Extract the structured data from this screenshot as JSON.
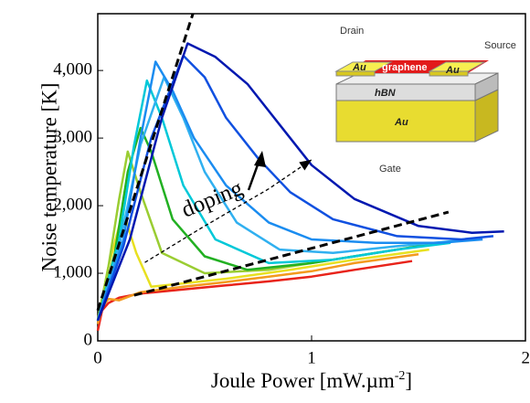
{
  "chart_data": {
    "type": "line",
    "xlabel": {
      "text": "Joule Power [mW.µm",
      "superscript": "-2",
      "close": "]"
    },
    "ylabel": "Noise temperature [K]",
    "annotation": "doping",
    "xlim": [
      0,
      2
    ],
    "xticks": [
      0,
      1,
      2
    ],
    "ylim": [
      0,
      4840
    ],
    "yticks": [
      0,
      {
        "value": 1000,
        "label": "1,000"
      },
      {
        "value": 2000,
        "label": "2,000"
      },
      {
        "value": 3000,
        "label": "3,000"
      },
      {
        "value": 4000,
        "label": "4,000"
      }
    ],
    "series": [
      {
        "color": "#e8231a",
        "x": [
          0,
          0.02,
          0.05,
          0.1,
          0.2,
          0.4,
          0.6,
          0.8,
          1.0,
          1.2,
          1.47
        ],
        "values": [
          150,
          450,
          560,
          640,
          700,
          760,
          820,
          880,
          950,
          1050,
          1180
        ]
      },
      {
        "color": "#f39a1e",
        "x": [
          0,
          0.02,
          0.05,
          0.1,
          0.2,
          0.4,
          0.6,
          0.8,
          1.0,
          1.2,
          1.5
        ],
        "values": [
          250,
          500,
          620,
          600,
          720,
          800,
          870,
          950,
          1030,
          1150,
          1280
        ]
      },
      {
        "color": "#e8e020",
        "x": [
          0,
          0.05,
          0.1,
          0.13,
          0.18,
          0.25,
          0.4,
          0.6,
          0.9,
          1.2,
          1.55
        ],
        "values": [
          300,
          1100,
          1700,
          1800,
          1300,
          800,
          850,
          920,
          1050,
          1200,
          1350
        ]
      },
      {
        "color": "#9acd32",
        "x": [
          0,
          0.05,
          0.1,
          0.14,
          0.2,
          0.3,
          0.5,
          0.8,
          1.1,
          1.5
        ],
        "values": [
          300,
          1100,
          2100,
          2800,
          2200,
          1300,
          1000,
          1050,
          1200,
          1400
        ]
      },
      {
        "color": "#22b022",
        "x": [
          0,
          0.08,
          0.14,
          0.2,
          0.25,
          0.35,
          0.5,
          0.7,
          1.0,
          1.3,
          1.6
        ],
        "values": [
          300,
          1300,
          2500,
          3150,
          2800,
          1800,
          1250,
          1050,
          1150,
          1300,
          1450
        ]
      },
      {
        "color": "#00c8d8",
        "x": [
          0,
          0.1,
          0.17,
          0.23,
          0.3,
          0.4,
          0.55,
          0.8,
          1.1,
          1.4,
          1.65
        ],
        "values": [
          300,
          1500,
          2900,
          3850,
          3300,
          2300,
          1500,
          1150,
          1200,
          1350,
          1450
        ]
      },
      {
        "color": "#30b0f0",
        "x": [
          0,
          0.1,
          0.2,
          0.31,
          0.4,
          0.5,
          0.65,
          0.85,
          1.1,
          1.4,
          1.75
        ],
        "values": [
          300,
          1400,
          2900,
          3900,
          3300,
          2500,
          1750,
          1350,
          1300,
          1400,
          1500
        ]
      },
      {
        "color": "#1a8cf0",
        "x": [
          0,
          0.12,
          0.2,
          0.27,
          0.35,
          0.45,
          0.6,
          0.8,
          1.0,
          1.3,
          1.6,
          1.8
        ],
        "values": [
          300,
          1500,
          3000,
          4130,
          3700,
          3000,
          2300,
          1750,
          1500,
          1450,
          1450,
          1500
        ]
      },
      {
        "color": "#1050e0",
        "x": [
          0,
          0.12,
          0.25,
          0.4,
          0.5,
          0.6,
          0.75,
          0.9,
          1.1,
          1.4,
          1.7,
          1.85
        ],
        "values": [
          300,
          1400,
          3000,
          4220,
          3900,
          3300,
          2700,
          2200,
          1800,
          1550,
          1500,
          1550
        ]
      },
      {
        "color": "#0018b0",
        "x": [
          0,
          0.15,
          0.3,
          0.42,
          0.55,
          0.7,
          0.85,
          1.0,
          1.2,
          1.5,
          1.75,
          1.9
        ],
        "values": [
          300,
          1500,
          3300,
          4400,
          4200,
          3800,
          3200,
          2600,
          2100,
          1700,
          1600,
          1620
        ]
      }
    ],
    "reference_lines": [
      {
        "color": "#000000",
        "x": [
          0,
          0.445
        ],
        "values": [
          450,
          4840
        ]
      },
      {
        "color": "#000000",
        "x": [
          0.17,
          1.64
        ],
        "values": [
          675,
          1905
        ]
      }
    ],
    "trend_arrow": {
      "color": "#000000",
      "x": [
        0.22,
        0.5,
        0.8,
        1.0
      ],
      "values": [
        1160,
        1700,
        2250,
        2680
      ]
    },
    "inset": {
      "drain": "Drain",
      "source": "Source",
      "gate": "Gate",
      "left_contact": "Au",
      "channel": "graphene",
      "right_contact": "Au",
      "dielectric": "hBN",
      "substrate": "Au"
    }
  }
}
